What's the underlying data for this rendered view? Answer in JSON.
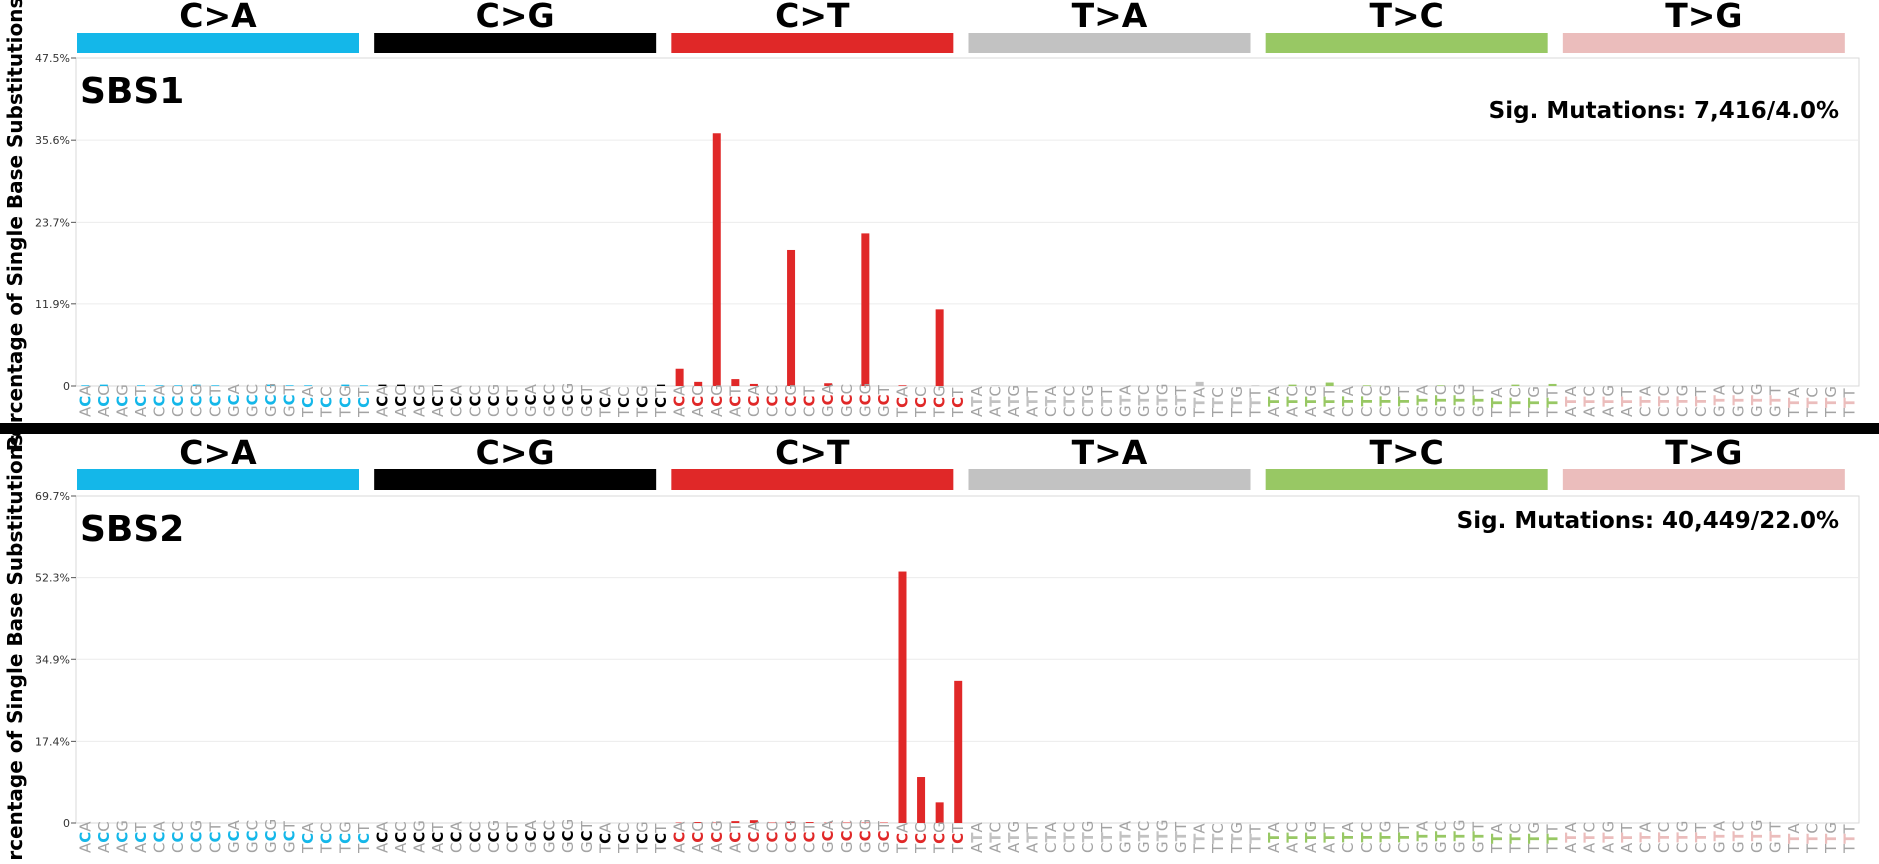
{
  "contexts": [
    "ACA",
    "ACC",
    "ACG",
    "ACT",
    "CCA",
    "CCC",
    "CCG",
    "CCT",
    "GCA",
    "GCC",
    "GCG",
    "GCT",
    "TCA",
    "TCC",
    "TCG",
    "TCT"
  ],
  "t_contexts": [
    "ATA",
    "ATC",
    "ATG",
    "ATT",
    "CTA",
    "CTC",
    "CTG",
    "CTT",
    "GTA",
    "GTC",
    "GTG",
    "GTT",
    "TTA",
    "TTC",
    "TTG",
    "TTT"
  ],
  "chart_data": [
    {
      "type": "bar",
      "signature": "SBS1",
      "title": "SBS1",
      "annotation": "Sig. Mutations: 7,416/4.0%",
      "ylabel": "Percentage of Single Base Substitutions",
      "ylim": [
        0,
        47.5
      ],
      "y_ticks": [
        "0",
        "11.9%",
        "23.7%",
        "35.6%",
        "47.5%"
      ],
      "y_tick_values": [
        0,
        11.9,
        23.7,
        35.6,
        47.5
      ],
      "grid": true,
      "groups": [
        {
          "name": "C>A",
          "color": "#14B7E9",
          "values": [
            0.1,
            0.2,
            0.0,
            0.1,
            0.1,
            0.1,
            0.2,
            0.1,
            0.0,
            0.0,
            0.2,
            0.1,
            0.1,
            0.0,
            0.2,
            0.1
          ]
        },
        {
          "name": "C>G",
          "color": "#000000",
          "values": [
            0.2,
            0.2,
            0.0,
            0.1,
            0.0,
            0.0,
            0.0,
            0.0,
            0.0,
            0.0,
            0.0,
            0.0,
            0.0,
            0.0,
            0.0,
            0.2
          ]
        },
        {
          "name": "C>T",
          "color": "#E02828",
          "values": [
            2.5,
            0.6,
            36.6,
            1.0,
            0.3,
            0.0,
            19.7,
            0.0,
            0.4,
            0.0,
            22.1,
            0.0,
            0.1,
            0.0,
            11.1,
            0.0
          ]
        },
        {
          "name": "T>A",
          "color": "#C2C2C2",
          "values": [
            0.0,
            0.1,
            0.0,
            0.0,
            0.0,
            0.0,
            0.0,
            0.0,
            0.0,
            0.0,
            0.0,
            0.0,
            0.6,
            0.0,
            0.0,
            0.1
          ]
        },
        {
          "name": "T>C",
          "color": "#98C864",
          "values": [
            0.0,
            0.2,
            0.0,
            0.5,
            0.0,
            0.1,
            0.0,
            0.0,
            0.0,
            0.1,
            0.0,
            0.0,
            0.0,
            0.2,
            0.0,
            0.3
          ]
        },
        {
          "name": "T>G",
          "color": "#EBBDBC",
          "values": [
            0.0,
            0.0,
            0.0,
            0.0,
            0.0,
            0.0,
            0.0,
            0.0,
            0.0,
            0.0,
            0.0,
            0.0,
            0.0,
            0.0,
            0.0,
            0.0
          ]
        }
      ]
    },
    {
      "type": "bar",
      "signature": "SBS2",
      "title": "SBS2",
      "annotation": "Sig. Mutations: 40,449/22.0%",
      "ylabel": "Percentage of Single Base Substitutions",
      "ylim": [
        0,
        69.7
      ],
      "y_ticks": [
        "0",
        "17.4%",
        "34.9%",
        "52.3%",
        "69.7%"
      ],
      "y_tick_values": [
        0,
        17.4,
        34.9,
        52.3,
        69.7
      ],
      "grid": true,
      "groups": [
        {
          "name": "C>A",
          "color": "#14B7E9",
          "values": [
            0,
            0,
            0,
            0,
            0,
            0,
            0,
            0,
            0,
            0,
            0,
            0,
            0,
            0,
            0,
            0
          ]
        },
        {
          "name": "C>G",
          "color": "#000000",
          "values": [
            0,
            0,
            0,
            0,
            0,
            0,
            0,
            0,
            0,
            0,
            0,
            0,
            0,
            0,
            0,
            0
          ]
        },
        {
          "name": "C>T",
          "color": "#E02828",
          "values": [
            0.1,
            0.2,
            0.1,
            0.4,
            0.6,
            0.1,
            0.3,
            0.2,
            0.1,
            0.1,
            0.1,
            0.1,
            53.6,
            9.8,
            4.4,
            30.3
          ]
        },
        {
          "name": "T>A",
          "color": "#C2C2C2",
          "values": [
            0,
            0,
            0,
            0,
            0,
            0,
            0,
            0,
            0,
            0,
            0,
            0,
            0,
            0,
            0,
            0
          ]
        },
        {
          "name": "T>C",
          "color": "#98C864",
          "values": [
            0,
            0,
            0,
            0,
            0,
            0,
            0,
            0,
            0,
            0,
            0,
            0,
            0,
            0,
            0,
            0
          ]
        },
        {
          "name": "T>G",
          "color": "#EBBDBC",
          "values": [
            0,
            0,
            0,
            0,
            0,
            0,
            0,
            0,
            0,
            0,
            0,
            0,
            0,
            0,
            0,
            0
          ]
        }
      ]
    }
  ]
}
